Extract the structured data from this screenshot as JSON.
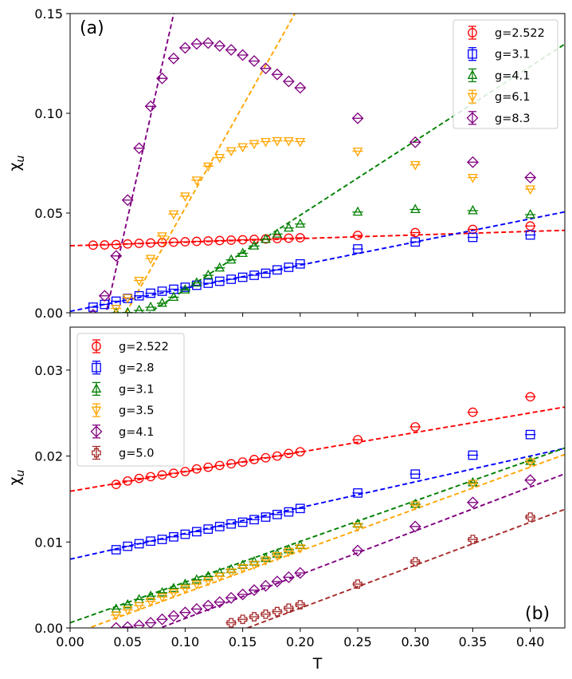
{
  "chart_data": [
    {
      "type": "scatter",
      "panel_label": "(a)",
      "xlabel": "",
      "ylabel": "χ",
      "ylabel_sub": "u",
      "xlim": [
        0.0,
        0.43
      ],
      "ylim": [
        0.0,
        0.15
      ],
      "xticks": [
        0.0,
        0.05,
        0.1,
        0.15,
        0.2,
        0.25,
        0.3,
        0.35,
        0.4
      ],
      "xticklabels": [],
      "yticks": [
        0.0,
        0.05,
        0.1,
        0.15
      ],
      "yticklabels": [
        "0.00",
        "0.05",
        "0.10",
        "0.15"
      ],
      "legend_position": "top-right",
      "series": [
        {
          "name": "g=2.522",
          "color": "#ff0000",
          "marker": "circle",
          "x": [
            0.02,
            0.03,
            0.04,
            0.05,
            0.06,
            0.07,
            0.08,
            0.09,
            0.1,
            0.11,
            0.12,
            0.13,
            0.14,
            0.15,
            0.16,
            0.17,
            0.18,
            0.19,
            0.2,
            0.25,
            0.3,
            0.35,
            0.4
          ],
          "y": [
            0.0339,
            0.034,
            0.0342,
            0.0345,
            0.0348,
            0.035,
            0.0352,
            0.0354,
            0.0356,
            0.0358,
            0.036,
            0.0362,
            0.0364,
            0.0366,
            0.0368,
            0.037,
            0.0372,
            0.0374,
            0.0376,
            0.0388,
            0.0402,
            0.0418,
            0.0435
          ],
          "fit": {
            "slope": 0.018,
            "intercept": 0.0336
          }
        },
        {
          "name": "g=3.1",
          "color": "#0000ff",
          "marker": "square",
          "x": [
            0.02,
            0.03,
            0.04,
            0.05,
            0.06,
            0.07,
            0.08,
            0.09,
            0.1,
            0.11,
            0.12,
            0.13,
            0.14,
            0.15,
            0.16,
            0.17,
            0.18,
            0.19,
            0.2,
            0.25,
            0.3,
            0.35,
            0.4
          ],
          "y": [
            0.0028,
            0.0042,
            0.0058,
            0.0072,
            0.0085,
            0.0098,
            0.0108,
            0.0118,
            0.0128,
            0.0138,
            0.0148,
            0.0158,
            0.0168,
            0.0178,
            0.0188,
            0.0198,
            0.0215,
            0.0228,
            0.0245,
            0.032,
            0.0355,
            0.0378,
            0.039
          ],
          "fit": {
            "slope": 0.116,
            "intercept": 0.0007
          }
        },
        {
          "name": "g=4.1",
          "color": "#008000",
          "marker": "triangle-up",
          "x": [
            0.04,
            0.05,
            0.06,
            0.07,
            0.08,
            0.09,
            0.1,
            0.11,
            0.12,
            0.13,
            0.14,
            0.15,
            0.16,
            0.17,
            0.18,
            0.19,
            0.2,
            0.25,
            0.3,
            0.35,
            0.4
          ],
          "y": [
            0.0,
            0.0001,
            0.0012,
            0.0028,
            0.0048,
            0.0078,
            0.0115,
            0.015,
            0.0188,
            0.0225,
            0.0265,
            0.0298,
            0.0335,
            0.0368,
            0.0395,
            0.0425,
            0.0445,
            0.0505,
            0.0518,
            0.0512,
            0.0492
          ],
          "fit": {
            "slope": 0.373,
            "intercept": -0.0257
          }
        },
        {
          "name": "g=6.1",
          "color": "#ffa500",
          "marker": "triangle-down",
          "x": [
            0.04,
            0.05,
            0.06,
            0.07,
            0.08,
            0.09,
            0.1,
            0.11,
            0.12,
            0.13,
            0.14,
            0.15,
            0.16,
            0.17,
            0.18,
            0.19,
            0.2,
            0.25,
            0.3,
            0.35,
            0.4
          ],
          "y": [
            0.0022,
            0.0075,
            0.0162,
            0.0272,
            0.0385,
            0.0495,
            0.0585,
            0.0665,
            0.0735,
            0.0778,
            0.0812,
            0.0832,
            0.0848,
            0.0858,
            0.0862,
            0.0862,
            0.0858,
            0.081,
            0.0742,
            0.0678,
            0.062
          ],
          "fit": {
            "slope": 1.022,
            "intercept": -0.0497
          }
        },
        {
          "name": "g=8.3",
          "color": "#800080",
          "marker": "diamond",
          "x": [
            0.02,
            0.03,
            0.04,
            0.05,
            0.06,
            0.07,
            0.08,
            0.09,
            0.1,
            0.11,
            0.12,
            0.13,
            0.14,
            0.15,
            0.16,
            0.17,
            0.18,
            0.19,
            0.2,
            0.25,
            0.3,
            0.35,
            0.4
          ],
          "y": [
            -0.001,
            0.0085,
            0.0285,
            0.0565,
            0.0825,
            0.1035,
            0.1175,
            0.1275,
            0.1328,
            0.1348,
            0.1352,
            0.1338,
            0.1318,
            0.1292,
            0.1262,
            0.1225,
            0.1195,
            0.116,
            0.1128,
            0.0975,
            0.0855,
            0.0755,
            0.0678
          ],
          "fit": {
            "slope": 2.555,
            "intercept": -0.0801
          }
        }
      ]
    },
    {
      "type": "scatter",
      "panel_label": "(b)",
      "xlabel": "T",
      "ylabel": "χ",
      "ylabel_sub": "u",
      "xlim": [
        0.0,
        0.43
      ],
      "ylim": [
        0.0,
        0.035
      ],
      "xticks": [
        0.0,
        0.05,
        0.1,
        0.15,
        0.2,
        0.25,
        0.3,
        0.35,
        0.4
      ],
      "xticklabels": [
        "0.00",
        "0.05",
        "0.10",
        "0.15",
        "0.20",
        "0.25",
        "0.30",
        "0.35",
        "0.40"
      ],
      "yticks": [
        0.0,
        0.01,
        0.02,
        0.03
      ],
      "yticklabels": [
        "0.00",
        "0.01",
        "0.02",
        "0.03"
      ],
      "legend_position": "top-left",
      "series": [
        {
          "name": "g=2.522",
          "color": "#ff0000",
          "marker": "circle",
          "x": [
            0.04,
            0.05,
            0.06,
            0.07,
            0.08,
            0.09,
            0.1,
            0.11,
            0.12,
            0.13,
            0.14,
            0.15,
            0.16,
            0.17,
            0.18,
            0.19,
            0.2,
            0.25,
            0.3,
            0.35,
            0.4
          ],
          "y": [
            0.0167,
            0.0171,
            0.0174,
            0.0176,
            0.0178,
            0.018,
            0.0182,
            0.0185,
            0.0187,
            0.0189,
            0.0191,
            0.0193,
            0.0196,
            0.0198,
            0.02,
            0.0203,
            0.0205,
            0.0219,
            0.0234,
            0.0251,
            0.0269
          ],
          "fit": {
            "slope": 0.0228,
            "intercept": 0.0159
          }
        },
        {
          "name": "g=2.8",
          "color": "#0000ff",
          "marker": "square",
          "x": [
            0.04,
            0.05,
            0.06,
            0.07,
            0.08,
            0.09,
            0.1,
            0.11,
            0.12,
            0.13,
            0.14,
            0.15,
            0.16,
            0.17,
            0.18,
            0.19,
            0.2,
            0.25,
            0.3,
            0.35,
            0.4
          ],
          "y": [
            0.0091,
            0.0095,
            0.0098,
            0.0101,
            0.0103,
            0.0106,
            0.0109,
            0.0112,
            0.0115,
            0.0118,
            0.0121,
            0.0123,
            0.0126,
            0.0129,
            0.0132,
            0.0135,
            0.0139,
            0.0157,
            0.0179,
            0.0201,
            0.0225
          ],
          "fit": {
            "slope": 0.03,
            "intercept": 0.008
          }
        },
        {
          "name": "g=3.1",
          "color": "#008000",
          "marker": "triangle-up",
          "x": [
            0.04,
            0.05,
            0.06,
            0.07,
            0.08,
            0.09,
            0.1,
            0.11,
            0.12,
            0.13,
            0.14,
            0.15,
            0.16,
            0.17,
            0.18,
            0.19,
            0.2,
            0.25,
            0.3,
            0.35,
            0.4
          ],
          "y": [
            0.0022,
            0.0027,
            0.0033,
            0.0037,
            0.0041,
            0.0046,
            0.0051,
            0.0056,
            0.006,
            0.0064,
            0.0068,
            0.0073,
            0.0077,
            0.0081,
            0.0086,
            0.0091,
            0.0096,
            0.0121,
            0.0144,
            0.0169,
            0.0194
          ],
          "fit": {
            "slope": 0.0473,
            "intercept": 0.0006
          }
        },
        {
          "name": "g=3.5",
          "color": "#ffa500",
          "marker": "triangle-down",
          "x": [
            0.04,
            0.05,
            0.06,
            0.07,
            0.08,
            0.09,
            0.1,
            0.11,
            0.12,
            0.13,
            0.14,
            0.15,
            0.16,
            0.17,
            0.18,
            0.19,
            0.2,
            0.25,
            0.3,
            0.35,
            0.4
          ],
          "y": [
            0.0015,
            0.0021,
            0.0026,
            0.0031,
            0.0036,
            0.0041,
            0.0046,
            0.0051,
            0.0055,
            0.006,
            0.0065,
            0.007,
            0.0074,
            0.0079,
            0.0084,
            0.0089,
            0.0093,
            0.0118,
            0.0143,
            0.0168,
            0.0193
          ],
          "fit": {
            "slope": 0.0488,
            "intercept": -0.0008
          }
        },
        {
          "name": "g=4.1",
          "color": "#800080",
          "marker": "diamond",
          "x": [
            0.04,
            0.05,
            0.06,
            0.07,
            0.08,
            0.09,
            0.1,
            0.11,
            0.12,
            0.13,
            0.14,
            0.15,
            0.16,
            0.17,
            0.18,
            0.19,
            0.2,
            0.25,
            0.3,
            0.35,
            0.4
          ],
          "y": [
            0.0,
            0.0001,
            0.0003,
            0.0006,
            0.001,
            0.0014,
            0.0018,
            0.0022,
            0.0026,
            0.003,
            0.0035,
            0.0039,
            0.0044,
            0.0049,
            0.0054,
            0.0059,
            0.0064,
            0.009,
            0.0118,
            0.0146,
            0.0172
          ],
          "fit": {
            "slope": 0.051,
            "intercept": -0.004
          }
        },
        {
          "name": "g=5.0",
          "color": "#a52a2a",
          "marker": "plus",
          "x": [
            0.14,
            0.15,
            0.16,
            0.17,
            0.18,
            0.19,
            0.2,
            0.25,
            0.3,
            0.35,
            0.4
          ],
          "y": [
            0.0006,
            0.001,
            0.0013,
            0.0016,
            0.0019,
            0.0023,
            0.0027,
            0.0051,
            0.0077,
            0.0103,
            0.0129
          ],
          "fit": {
            "slope": 0.05,
            "intercept": -0.0077
          }
        }
      ]
    }
  ]
}
